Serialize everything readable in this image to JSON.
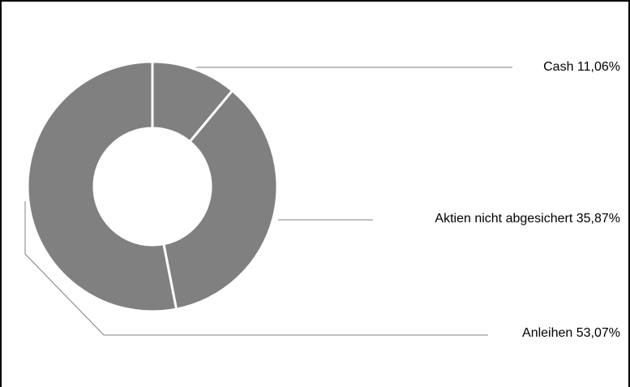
{
  "chart_data": {
    "type": "pie",
    "variant": "donut",
    "title": "",
    "categories": [
      "Cash",
      "Aktien nicht abgesichert",
      "Anleihen"
    ],
    "values": [
      11.06,
      35.87,
      53.07
    ],
    "value_labels": [
      "11,06%",
      "35,87%",
      "53,07%"
    ],
    "labels": [
      "Cash 11,06%",
      "Aktien nicht abgesichert 35,87%",
      "Anleihen 53,07%"
    ],
    "colors": [
      "#808080",
      "#808080",
      "#808080"
    ],
    "separator_color": "#ffffff",
    "leader_line_color": "#808080",
    "legend": "none",
    "start_angle": "top",
    "direction": "clockwise"
  }
}
